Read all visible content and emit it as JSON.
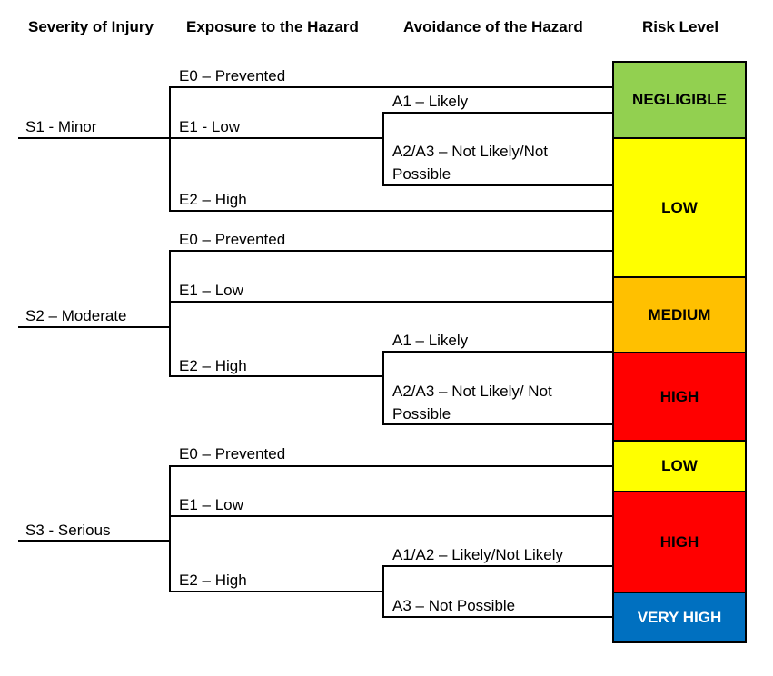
{
  "headers": {
    "severity": "Severity of Injury",
    "exposure": "Exposure to the Hazard",
    "avoidance": "Avoidance of the Hazard",
    "risk": "Risk Level"
  },
  "severity": [
    "S1 - Minor",
    "S2 – Moderate",
    "S3 - Serious"
  ],
  "exposure": {
    "s1": [
      "E0 – Prevented",
      "E1 - Low",
      "E2 – High"
    ],
    "s2": [
      "E0 – Prevented",
      "E1 – Low",
      "E2 – High"
    ],
    "s3": [
      "E0 – Prevented",
      "E1 – Low",
      "E2 – High"
    ]
  },
  "avoidance": {
    "s1_e1": [
      "A1 – Likely",
      "A2/A3 – Not Likely/Not Possible"
    ],
    "s2_e2": [
      "A1 – Likely",
      "A2/A3 – Not Likely/ Not Possible"
    ],
    "s3_e2": [
      "A1/A2 – Likely/Not Likely",
      "A3 – Not Possible"
    ]
  },
  "risk_levels": [
    {
      "label": "NEGLIGIBLE",
      "color": "#92d050",
      "text_color": "#000000"
    },
    {
      "label": "LOW",
      "color": "#ffff00",
      "text_color": "#000000"
    },
    {
      "label": "MEDIUM",
      "color": "#ffc000",
      "text_color": "#000000"
    },
    {
      "label": "HIGH",
      "color": "#ff0000",
      "text_color": "#000000"
    },
    {
      "label": "LOW",
      "color": "#ffff00",
      "text_color": "#000000"
    },
    {
      "label": "HIGH",
      "color": "#ff0000",
      "text_color": "#000000"
    },
    {
      "label": "VERY HIGH",
      "color": "#0070c0",
      "text_color": "#ffffff"
    }
  ]
}
